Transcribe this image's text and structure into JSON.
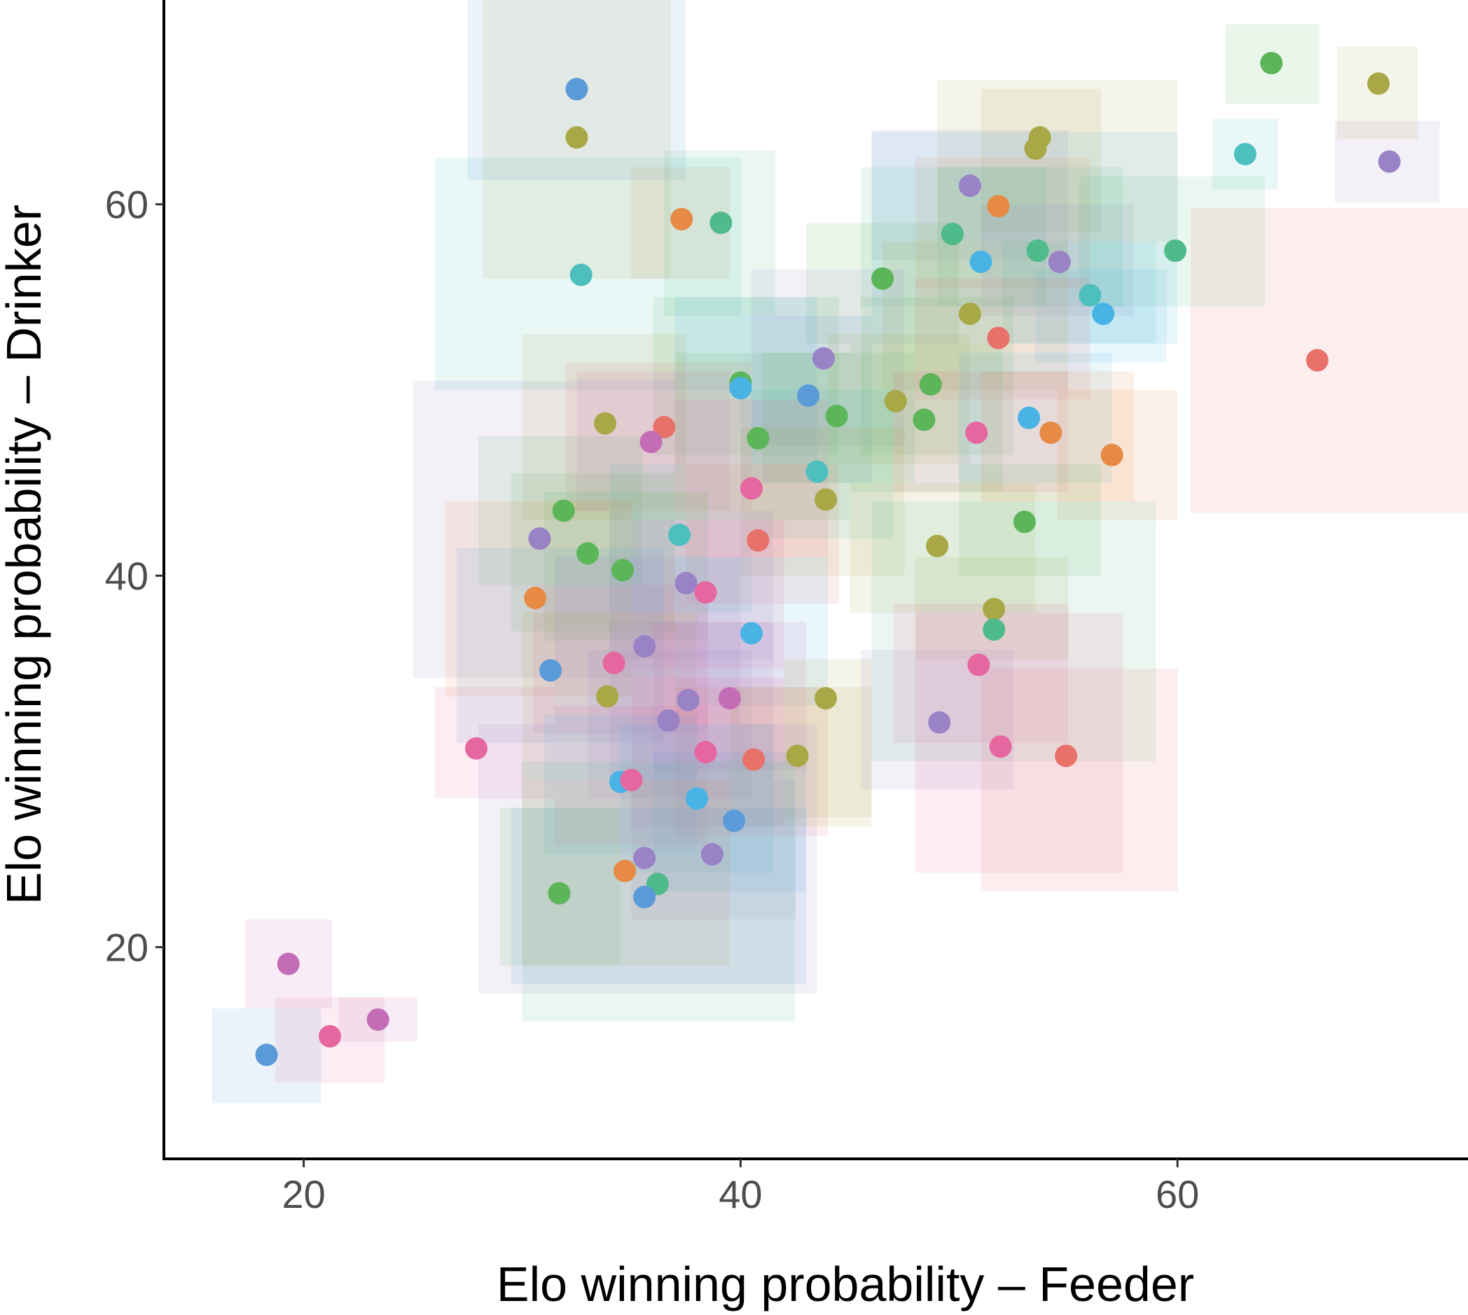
{
  "chart_data": {
    "type": "scatter",
    "title": "",
    "xlabel": "Elo winning probability – Feeder",
    "ylabel": "Elo winning probability – Drinker",
    "xlim": [
      13.6,
      73.3
    ],
    "ylim": [
      8.6,
      71.0
    ],
    "xticks": [
      20,
      40,
      60
    ],
    "yticks": [
      20,
      40,
      60
    ],
    "grid": false,
    "legend": "none",
    "colors": {
      "blue": "#5b9ad8",
      "orange": "#e68a45",
      "green": "#5db55a",
      "teal": "#4dbfbf",
      "purple": "#9a82c6",
      "olive": "#a9a847",
      "red": "#e8716a",
      "pink": "#e666a0",
      "magenta": "#c46db6",
      "sky": "#49b3e6",
      "mint": "#4fba8a"
    },
    "point_fields": [
      "x",
      "y",
      "x_min",
      "x_max",
      "y_min",
      "y_max",
      "color"
    ],
    "points": [
      [
        32.5,
        66.2,
        27.5,
        37.5,
        61.3,
        71.0,
        "blue"
      ],
      [
        32.5,
        63.6,
        28.2,
        36.8,
        56.0,
        71.0,
        "olive"
      ],
      [
        37.3,
        59.2,
        35.0,
        39.5,
        56.0,
        62.0,
        "orange"
      ],
      [
        39.1,
        59.0,
        36.5,
        41.6,
        54.0,
        62.9,
        "mint"
      ],
      [
        32.7,
        56.2,
        26.0,
        40.0,
        50.0,
        62.5,
        "teal"
      ],
      [
        64.3,
        67.6,
        62.2,
        66.5,
        65.4,
        69.7,
        "green"
      ],
      [
        69.2,
        66.5,
        67.3,
        71.0,
        63.5,
        68.5,
        "olive"
      ],
      [
        63.1,
        62.7,
        61.6,
        64.6,
        60.8,
        64.6,
        "teal"
      ],
      [
        69.7,
        62.3,
        67.2,
        72.0,
        60.1,
        64.5,
        "purple"
      ],
      [
        53.7,
        63.6,
        49.0,
        60.0,
        58.0,
        66.7,
        "olive"
      ],
      [
        53.5,
        63.0,
        51.0,
        56.5,
        58.5,
        66.2,
        "olive"
      ],
      [
        50.5,
        61.0,
        46.0,
        55.0,
        57.0,
        64.0,
        "purple"
      ],
      [
        51.8,
        59.9,
        48.0,
        56.0,
        55.5,
        62.5,
        "orange"
      ],
      [
        49.7,
        58.4,
        45.5,
        54.0,
        54.5,
        62.0,
        "mint"
      ],
      [
        51.0,
        56.9,
        46.0,
        60.0,
        52.5,
        63.9,
        "sky"
      ],
      [
        53.6,
        57.5,
        49.0,
        57.5,
        54.5,
        62.0,
        "mint"
      ],
      [
        54.6,
        56.9,
        51.0,
        58.0,
        54.0,
        60.0,
        "purple"
      ],
      [
        59.9,
        57.5,
        55.5,
        64.0,
        54.5,
        61.5,
        "mint"
      ],
      [
        46.5,
        56.0,
        43.0,
        50.0,
        52.5,
        59.0,
        "green"
      ],
      [
        56.0,
        55.1,
        52.0,
        59.0,
        52.5,
        58.0,
        "teal"
      ],
      [
        56.6,
        54.1,
        53.5,
        59.5,
        51.5,
        56.5,
        "sky"
      ],
      [
        50.5,
        54.1,
        46.5,
        55.0,
        50.0,
        58.0,
        "olive"
      ],
      [
        51.8,
        52.8,
        48.0,
        56.0,
        49.5,
        56.0,
        "red"
      ],
      [
        66.4,
        51.6,
        60.6,
        73.3,
        43.4,
        59.8,
        "red"
      ],
      [
        43.8,
        51.7,
        40.5,
        47.5,
        47.0,
        56.5,
        "purple"
      ],
      [
        40.0,
        50.4,
        36.0,
        44.5,
        46.5,
        55.0,
        "green"
      ],
      [
        40.0,
        50.1,
        37.0,
        43.5,
        46.0,
        55.0,
        "sky"
      ],
      [
        43.1,
        49.7,
        40.0,
        46.0,
        45.0,
        54.0,
        "blue"
      ],
      [
        47.1,
        49.4,
        44.0,
        50.5,
        46.0,
        53.0,
        "olive"
      ],
      [
        48.7,
        50.3,
        45.5,
        52.5,
        46.5,
        55.0,
        "green"
      ],
      [
        44.4,
        48.6,
        41.0,
        48.0,
        45.0,
        52.0,
        "green"
      ],
      [
        48.4,
        48.4,
        45.0,
        52.0,
        44.5,
        52.5,
        "green"
      ],
      [
        33.8,
        48.2,
        30.0,
        37.5,
        43.0,
        53.0,
        "olive"
      ],
      [
        36.5,
        48.0,
        32.0,
        40.5,
        43.5,
        51.5,
        "red"
      ],
      [
        35.9,
        47.2,
        32.5,
        39.5,
        43.5,
        51.0,
        "magenta"
      ],
      [
        40.8,
        47.4,
        37.0,
        45.0,
        43.0,
        52.0,
        "green"
      ],
      [
        50.8,
        47.7,
        47.0,
        55.0,
        44.5,
        51.0,
        "pink"
      ],
      [
        53.2,
        48.5,
        50.0,
        57.0,
        45.0,
        52.0,
        "sky"
      ],
      [
        54.2,
        47.7,
        51.0,
        58.0,
        44.0,
        51.0,
        "orange"
      ],
      [
        57.0,
        46.5,
        54.5,
        60.0,
        43.0,
        50.0,
        "orange"
      ],
      [
        43.5,
        45.6,
        40.5,
        47.0,
        42.0,
        50.0,
        "teal"
      ],
      [
        40.5,
        44.7,
        37.0,
        44.0,
        41.0,
        49.5,
        "pink"
      ],
      [
        43.9,
        44.1,
        40.0,
        47.5,
        40.0,
        48.0,
        "olive"
      ],
      [
        31.9,
        43.5,
        28.0,
        35.5,
        39.5,
        47.5,
        "green"
      ],
      [
        30.8,
        42.0,
        25.0,
        37.0,
        34.5,
        50.5,
        "purple"
      ],
      [
        37.2,
        42.2,
        34.0,
        40.5,
        38.0,
        46.0,
        "teal"
      ],
      [
        40.8,
        41.9,
        37.5,
        44.5,
        38.5,
        46.0,
        "red"
      ],
      [
        53.0,
        42.9,
        50.0,
        56.5,
        40.0,
        46.0,
        "green"
      ],
      [
        49.0,
        41.6,
        45.0,
        53.5,
        38.0,
        45.0,
        "olive"
      ],
      [
        33.0,
        41.2,
        29.5,
        37.0,
        37.0,
        45.5,
        "green"
      ],
      [
        34.6,
        40.3,
        31.0,
        38.5,
        36.5,
        44.5,
        "green"
      ],
      [
        30.6,
        38.8,
        26.5,
        35.0,
        33.5,
        44.0,
        "orange"
      ],
      [
        37.5,
        39.6,
        34.0,
        41.5,
        35.5,
        43.5,
        "purple"
      ],
      [
        38.4,
        39.1,
        35.0,
        42.0,
        35.0,
        43.0,
        "pink"
      ],
      [
        51.6,
        38.2,
        48.0,
        55.0,
        35.5,
        41.0,
        "olive"
      ],
      [
        51.6,
        37.1,
        46.0,
        59.0,
        30.0,
        44.0,
        "mint"
      ],
      [
        40.5,
        36.9,
        37.0,
        44.0,
        33.0,
        41.0,
        "sky"
      ],
      [
        35.6,
        36.2,
        31.5,
        40.0,
        32.0,
        41.0,
        "purple"
      ],
      [
        34.2,
        35.3,
        30.5,
        38.5,
        31.5,
        39.5,
        "pink"
      ],
      [
        31.3,
        34.9,
        27.0,
        36.5,
        31.0,
        41.5,
        "blue"
      ],
      [
        50.9,
        35.2,
        47.0,
        55.0,
        31.0,
        38.5,
        "pink"
      ],
      [
        33.9,
        33.5,
        30.0,
        38.0,
        29.0,
        38.0,
        "olive"
      ],
      [
        37.6,
        33.3,
        34.0,
        41.5,
        29.0,
        37.5,
        "purple"
      ],
      [
        39.5,
        33.4,
        36.0,
        43.0,
        29.5,
        37.5,
        "magenta"
      ],
      [
        43.9,
        33.4,
        42.0,
        46.0,
        27.0,
        35.5,
        "olive"
      ],
      [
        36.7,
        32.2,
        33.0,
        40.5,
        28.0,
        36.0,
        "purple"
      ],
      [
        49.1,
        32.1,
        45.5,
        52.5,
        28.5,
        36.0,
        "purple"
      ],
      [
        27.9,
        30.7,
        26.0,
        31.5,
        28.0,
        34.0,
        "pink"
      ],
      [
        38.4,
        30.5,
        35.0,
        42.0,
        26.5,
        34.5,
        "pink"
      ],
      [
        40.6,
        30.1,
        37.0,
        44.0,
        26.0,
        34.0,
        "red"
      ],
      [
        42.6,
        30.3,
        39.5,
        46.0,
        26.5,
        34.0,
        "olive"
      ],
      [
        51.9,
        30.8,
        48.0,
        57.5,
        24.0,
        38.0,
        "pink"
      ],
      [
        54.9,
        30.3,
        51.0,
        60.0,
        23.0,
        35.0,
        "red"
      ],
      [
        34.5,
        28.9,
        31.0,
        38.0,
        25.0,
        32.5,
        "sky"
      ],
      [
        35.0,
        29.0,
        31.5,
        38.5,
        25.5,
        33.0,
        "pink"
      ],
      [
        38.0,
        28.0,
        34.5,
        41.5,
        24.0,
        32.0,
        "sky"
      ],
      [
        39.7,
        26.8,
        36.0,
        43.0,
        23.0,
        30.5,
        "blue"
      ],
      [
        38.7,
        25.0,
        35.0,
        42.5,
        21.5,
        29.0,
        "purple"
      ],
      [
        35.6,
        24.8,
        28.0,
        43.5,
        17.5,
        32.0,
        "purple"
      ],
      [
        34.7,
        24.1,
        30.0,
        39.5,
        19.0,
        29.0,
        "orange"
      ],
      [
        36.2,
        23.4,
        30.0,
        42.5,
        16.0,
        30.0,
        "mint"
      ],
      [
        31.7,
        22.9,
        29.0,
        34.5,
        19.0,
        27.5,
        "green"
      ],
      [
        35.6,
        22.7,
        29.5,
        43.0,
        18.0,
        27.5,
        "blue"
      ],
      [
        19.3,
        19.1,
        17.3,
        21.3,
        16.7,
        21.5,
        "magenta"
      ],
      [
        23.4,
        16.1,
        21.6,
        25.2,
        14.9,
        17.3,
        "magenta"
      ],
      [
        21.2,
        15.2,
        18.7,
        23.7,
        12.7,
        17.3,
        "pink"
      ],
      [
        18.3,
        14.2,
        15.8,
        20.8,
        11.6,
        16.7,
        "blue"
      ]
    ]
  }
}
